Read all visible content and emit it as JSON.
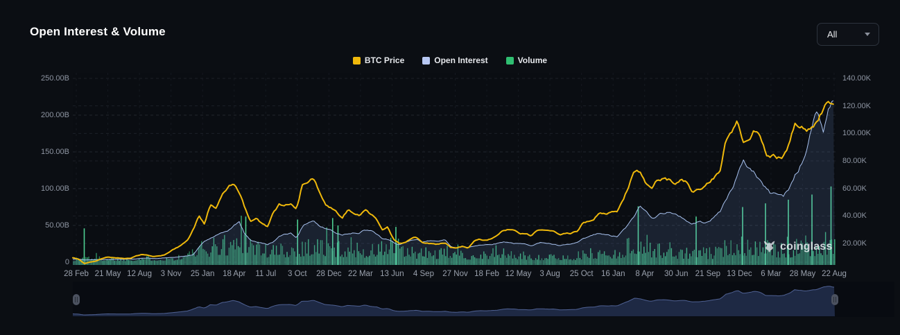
{
  "header": {
    "title": "Open Interest & Volume",
    "range_selector": {
      "value": "All"
    }
  },
  "legend": [
    {
      "label": "BTC Price",
      "color": "#F0B90B"
    },
    {
      "label": "Open Interest",
      "color": "#B7C8F3"
    },
    {
      "label": "Volume",
      "color": "#2FBE71"
    }
  ],
  "watermark": {
    "text": "coinglass",
    "icon": "coinglass-bull-icon"
  },
  "chart_data": {
    "type": "combo",
    "title": "Open Interest & Volume",
    "grid": "dashed",
    "legend_position": "top-center",
    "left_axis": {
      "label": "",
      "unit": "B USD",
      "ticks": [
        "250.00B",
        "200.00B",
        "150.00B",
        "100.00B",
        "50.00B",
        "0"
      ],
      "tick_values": [
        250,
        200,
        150,
        100,
        50,
        0
      ],
      "range": [
        0,
        250
      ]
    },
    "right_axis": {
      "label": "",
      "unit": "K USD",
      "ticks": [
        "140.00K",
        "120.00K",
        "100.00K",
        "80.00K",
        "60.00K",
        "40.00K",
        "20.00K"
      ],
      "tick_values": [
        140,
        120,
        100,
        80,
        60,
        40,
        20
      ],
      "range": [
        6.5,
        140
      ]
    },
    "x_ticks": [
      "28 Feb",
      "21 May",
      "12 Aug",
      "3 Nov",
      "25 Jan",
      "18 Apr",
      "11 Jul",
      "3 Oct",
      "28 Dec",
      "22 Mar",
      "13 Jun",
      "4 Sep",
      "27 Nov",
      "18 Feb",
      "12 May",
      "3 Aug",
      "25 Oct",
      "16 Jan",
      "8 Apr",
      "30 Jun",
      "21 Sep",
      "13 Dec",
      "6 Mar",
      "28 May",
      "22 Aug"
    ],
    "x_start": "28 Feb 2020",
    "x_end": "late Aug 2025",
    "series": [
      {
        "name": "BTC Price",
        "type": "line",
        "axis": "right",
        "color": "#F0B90B",
        "unit": "K USD",
        "cadence": "semimonthly",
        "values": [
          9.7,
          8.6,
          5.3,
          6.4,
          7,
          8.8,
          9.8,
          9.5,
          9.4,
          9.1,
          9.2,
          11.1,
          11.9,
          11.7,
          10.4,
          10.8,
          11.5,
          13.8,
          16.3,
          18.7,
          21.3,
          29,
          38.8,
          33.1,
          47.5,
          45.2,
          55.6,
          58.9,
          63.5,
          57.7,
          46.7,
          37.3,
          40.2,
          35,
          31.8,
          41.5,
          47,
          47.2,
          48.1,
          43.8,
          61.5,
          61.3,
          65,
          57,
          48,
          46.2,
          43.1,
          38.5,
          44.6,
          43.2,
          40.5,
          45.5,
          40.4,
          38.6,
          29.9,
          31.8,
          22.5,
          19.9,
          20.8,
          23.3,
          24.4,
          20,
          20.2,
          19.4,
          19.1,
          20.5,
          16.9,
          16.5,
          17.8,
          16.5,
          20.9,
          23.1,
          22.2,
          23.5,
          24.7,
          28.5,
          30.4,
          29.2,
          27,
          27.2,
          25.6,
          30.5,
          30.3,
          29.2,
          29.4,
          26,
          26.6,
          27,
          28.5,
          34.5,
          36.5,
          37.7,
          42.9,
          42.3,
          42.8,
          42.6,
          52,
          61.2,
          73,
          71.3,
          63.8,
          60.6,
          66.3,
          67.5,
          66,
          62.7,
          64.8,
          64.6,
          58.7,
          59,
          60.6,
          63.3,
          67.4,
          70.2,
          91,
          96.4,
          106,
          93.4,
          97,
          102.1,
          98,
          84.3,
          84,
          82.5,
          84.5,
          94.2,
          108,
          105,
          103,
          107.1,
          110,
          118,
          122,
          117
        ]
      },
      {
        "name": "Open Interest",
        "type": "area",
        "axis": "left",
        "color": "#A9C3F0",
        "fill": "rgba(120,152,224,0.15)",
        "unit": "B USD",
        "cadence": "semimonthly",
        "values": [
          4,
          4.2,
          3,
          3.2,
          3.4,
          3.6,
          3.8,
          4,
          4,
          4.1,
          4.3,
          4.6,
          5.5,
          5.8,
          5.2,
          5.3,
          5.8,
          6.2,
          7,
          7.8,
          8.5,
          10,
          20,
          28,
          32,
          36,
          38,
          42,
          48,
          55,
          38,
          30,
          28,
          26,
          24,
          28,
          34,
          38,
          40,
          34,
          48,
          54,
          58,
          50,
          46,
          44,
          40,
          38,
          40,
          42,
          40,
          44,
          42,
          38,
          32,
          30,
          26,
          24,
          26,
          28,
          30,
          26,
          28,
          30,
          28,
          30,
          22,
          20,
          21,
          20,
          22,
          24,
          24,
          25,
          26,
          28,
          28,
          26,
          25,
          24,
          23,
          26,
          27,
          26,
          24,
          22,
          23,
          24,
          26,
          30,
          33,
          36,
          38,
          36,
          35,
          34,
          42,
          50,
          62,
          75,
          68,
          62,
          64,
          68,
          70,
          64,
          62,
          58,
          52,
          55,
          54,
          58,
          62,
          70,
          85,
          100,
          120,
          135,
          128,
          122,
          112,
          100,
          92,
          95,
          90,
          100,
          118,
          132,
          150,
          185,
          205,
          175,
          215,
          225
        ]
      },
      {
        "name": "Volume",
        "type": "bar",
        "axis": "left",
        "color": "#3DBC7F",
        "unit": "B USD",
        "cadence": "monthly-typical-bar-level",
        "values": [
          4,
          10,
          6,
          6,
          5,
          5,
          7,
          6,
          6,
          8,
          12,
          20,
          26,
          28,
          34,
          40,
          24,
          18,
          20,
          22,
          26,
          28,
          24,
          22,
          24,
          20,
          18,
          26,
          24,
          16,
          15,
          15,
          13,
          20,
          11,
          12,
          14,
          17,
          13,
          10,
          9,
          9,
          8,
          8,
          11,
          15,
          15,
          14,
          24,
          32,
          22,
          18,
          16,
          14,
          16,
          14,
          16,
          32,
          30,
          26,
          22,
          18,
          20,
          26,
          24,
          30,
          36
        ],
        "spikes": [
          [
            0.015,
            46
          ],
          [
            0.227,
            62
          ],
          [
            0.295,
            58
          ],
          [
            0.341,
            60
          ],
          [
            0.348,
            50
          ],
          [
            0.424,
            48
          ],
          [
            0.742,
            76
          ],
          [
            0.818,
            62
          ],
          [
            0.879,
            75
          ],
          [
            0.909,
            80
          ],
          [
            0.939,
            85
          ],
          [
            0.97,
            92
          ],
          [
            0.995,
            103
          ]
        ]
      }
    ],
    "navigator": {
      "shows": "BTC Price overview",
      "selected_range": "full",
      "handles": [
        "left",
        "right"
      ]
    }
  }
}
